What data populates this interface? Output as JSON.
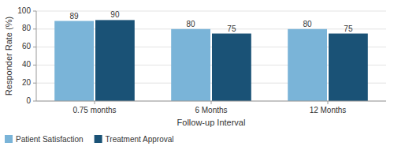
{
  "chart_data": {
    "type": "bar",
    "categories": [
      "0.75 months",
      "6 Months",
      "12 Months"
    ],
    "series": [
      {
        "name": "Patient Satisfaction",
        "color": "#7ab4d8",
        "values": [
          89,
          80,
          80
        ]
      },
      {
        "name": "Treatment Approval",
        "color": "#1a5276",
        "values": [
          90,
          75,
          75
        ]
      }
    ],
    "xlabel": "Follow-up Interval",
    "ylabel": "Responder Rate (%)",
    "ylim": [
      0,
      100
    ],
    "yticks": [
      0,
      20,
      40,
      60,
      80,
      100
    ],
    "grid": true,
    "data_labels": true,
    "legend": "lower left"
  }
}
